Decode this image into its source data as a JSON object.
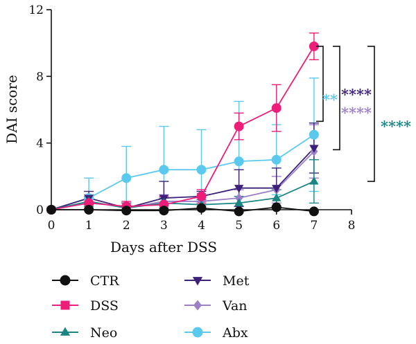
{
  "chart_data": {
    "type": "line",
    "xlabel": "Days after DSS",
    "ylabel": "DAI score",
    "xlim": [
      0,
      8
    ],
    "ylim": [
      0,
      12
    ],
    "x_ticks": [
      0,
      1,
      2,
      3,
      4,
      5,
      6,
      7,
      8
    ],
    "y_ticks": [
      0,
      4,
      8,
      12
    ],
    "grid": false,
    "legend_position": "bottom",
    "x": [
      0,
      1,
      2,
      3,
      4,
      5,
      6,
      7
    ],
    "series": [
      {
        "name": "CTR",
        "color": "#111111",
        "marker": "circle",
        "values": [
          0,
          0,
          -0.05,
          -0.05,
          0.1,
          -0.1,
          0.15,
          -0.1
        ],
        "error": [
          0,
          0,
          0,
          0,
          0,
          0,
          0,
          0
        ]
      },
      {
        "name": "DSS",
        "color": "#ed1e79",
        "marker": "circle",
        "values": [
          0,
          0.4,
          0.2,
          0.3,
          0.8,
          5.0,
          6.1,
          9.8
        ],
        "error": [
          0,
          0.4,
          0.3,
          0.5,
          0.4,
          0.8,
          1.4,
          0.8
        ]
      },
      {
        "name": "Neo",
        "color": "#1a8583",
        "marker": "triangle-up",
        "values": [
          0,
          0.5,
          0.1,
          0.4,
          0.3,
          0.4,
          0.7,
          1.7
        ],
        "error": [
          0,
          0.3,
          0.3,
          0.3,
          0.3,
          0.4,
          0.5,
          1.3
        ]
      },
      {
        "name": "Met",
        "color": "#3c2178",
        "marker": "triangle-down",
        "values": [
          0,
          0.7,
          0.1,
          0.7,
          0.8,
          1.3,
          1.3,
          3.7
        ],
        "error": [
          0,
          0.4,
          0.3,
          1.0,
          0.3,
          1.1,
          1.2,
          1.5
        ]
      },
      {
        "name": "Van",
        "color": "#9b7fc9",
        "marker": "diamond",
        "values": [
          0,
          0.5,
          0.1,
          0.5,
          0.5,
          0.7,
          1.2,
          3.5
        ],
        "error": [
          0,
          0.4,
          0.3,
          0.4,
          0.3,
          0.5,
          0.8,
          1.6
        ]
      },
      {
        "name": "Abx",
        "color": "#5bc8ee",
        "marker": "circle",
        "values": [
          0,
          0.7,
          1.9,
          2.4,
          2.4,
          2.9,
          3.0,
          4.5
        ],
        "error": [
          0,
          1.2,
          1.9,
          2.6,
          2.4,
          3.6,
          2.1,
          3.4
        ]
      }
    ],
    "significance": [
      {
        "stars": "**",
        "color": "#5bc8ee"
      },
      {
        "stars": "****",
        "color": "#3c2178"
      },
      {
        "stars": "****",
        "color": "#9b7fc9"
      },
      {
        "stars": "****",
        "color": "#1a8583"
      }
    ]
  }
}
